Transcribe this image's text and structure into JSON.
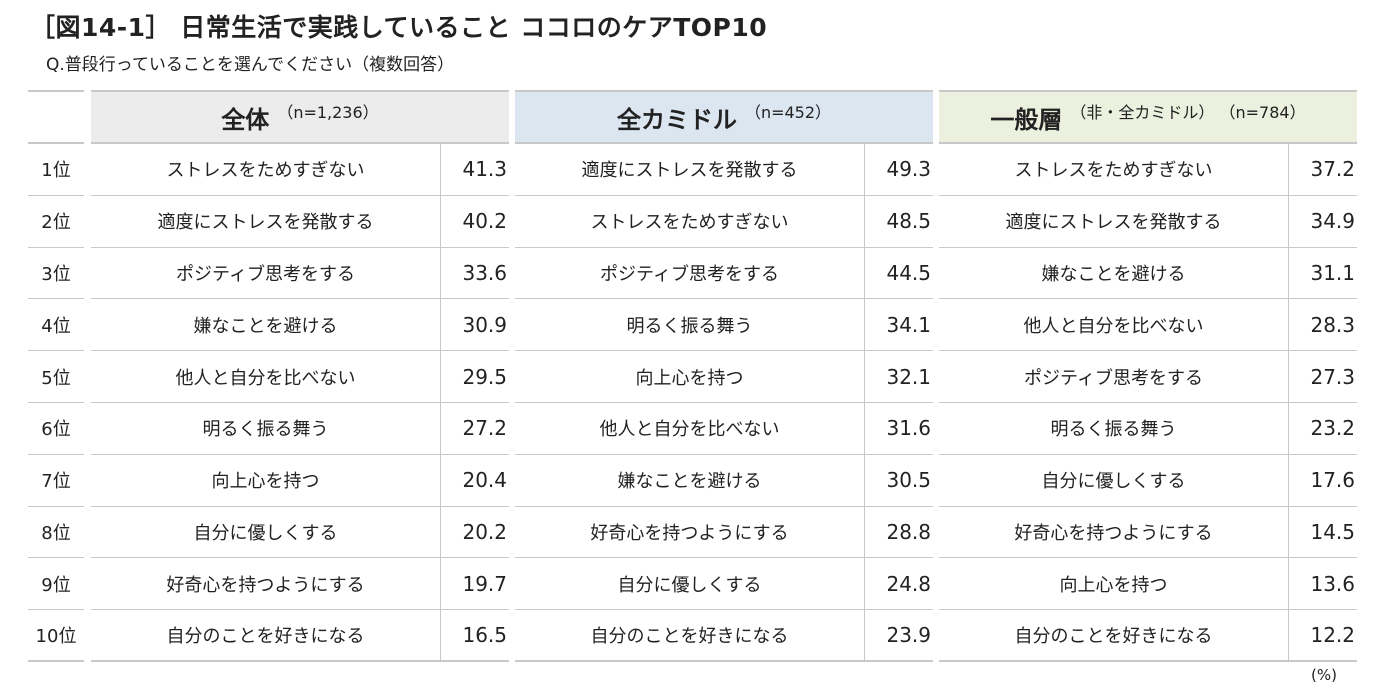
{
  "title": "［図14-1］ 日常生活で実践していること ココロのケアTOP10",
  "subtitle": "Q.普段行っていることを選んでください（複数回答）",
  "unit": "(%)",
  "chart_data": {
    "type": "table",
    "ranks": [
      "1位",
      "2位",
      "3位",
      "4位",
      "5位",
      "6位",
      "7位",
      "8位",
      "9位",
      "10位"
    ],
    "groups": [
      {
        "name": "全体",
        "n": "（n=1,236）",
        "header_color": "#ececec",
        "items": [
          "ストレスをためすぎない",
          "適度にストレスを発散する",
          "ポジティブ思考をする",
          "嫌なことを避ける",
          "他人と自分を比べない",
          "明るく振る舞う",
          "向上心を持つ",
          "自分に優しくする",
          "好奇心を持つようにする",
          "自分のことを好きになる"
        ],
        "values": [
          "41.3",
          "40.2",
          "33.6",
          "30.9",
          "29.5",
          "27.2",
          "20.4",
          "20.2",
          "19.7",
          "16.5"
        ]
      },
      {
        "name": "全カミドル",
        "n": "（n=452）",
        "header_color": "#dce6f1",
        "items": [
          "適度にストレスを発散する",
          "ストレスをためすぎない",
          "ポジティブ思考をする",
          "明るく振る舞う",
          "向上心を持つ",
          "他人と自分を比べない",
          "嫌なことを避ける",
          "好奇心を持つようにする",
          "自分に優しくする",
          "自分のことを好きになる"
        ],
        "values": [
          "49.3",
          "48.5",
          "44.5",
          "34.1",
          "32.1",
          "31.6",
          "30.5",
          "28.8",
          "24.8",
          "23.9"
        ]
      },
      {
        "name": "一般層",
        "n": "（非・全カミドル） （n=784）",
        "header_color": "#ebf1de",
        "items": [
          "ストレスをためすぎない",
          "適度にストレスを発散する",
          "嫌なことを避ける",
          "他人と自分を比べない",
          "ポジティブ思考をする",
          "明るく振る舞う",
          "自分に優しくする",
          "好奇心を持つようにする",
          "向上心を持つ",
          "自分のことを好きになる"
        ],
        "values": [
          "37.2",
          "34.9",
          "31.1",
          "28.3",
          "27.3",
          "23.2",
          "17.6",
          "14.5",
          "13.6",
          "12.2"
        ]
      }
    ]
  }
}
